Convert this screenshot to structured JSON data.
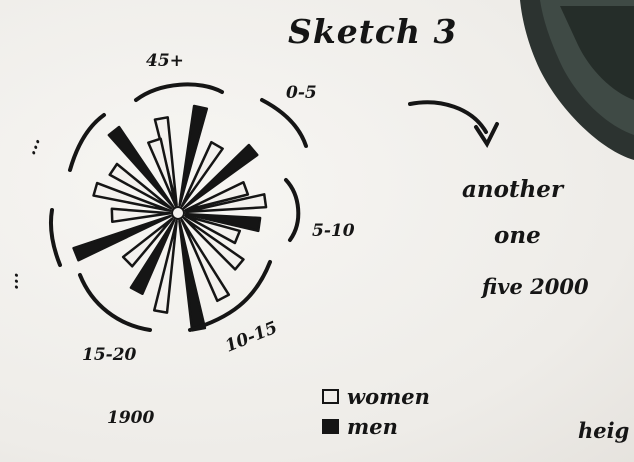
{
  "title": "Sketch 3",
  "sector_labels": [
    "45+",
    "0-5",
    "5-10",
    "10-15",
    "15-20",
    "...",
    "..."
  ],
  "note_lines": [
    "another",
    "one",
    "five 2000"
  ],
  "year": "1900",
  "legend": {
    "women": "women",
    "men": "men"
  },
  "cutoff_text": "heig",
  "colors": {
    "ink": "#151515",
    "paper": "#f3f1ee",
    "lens_dark": "#2c3330"
  }
}
